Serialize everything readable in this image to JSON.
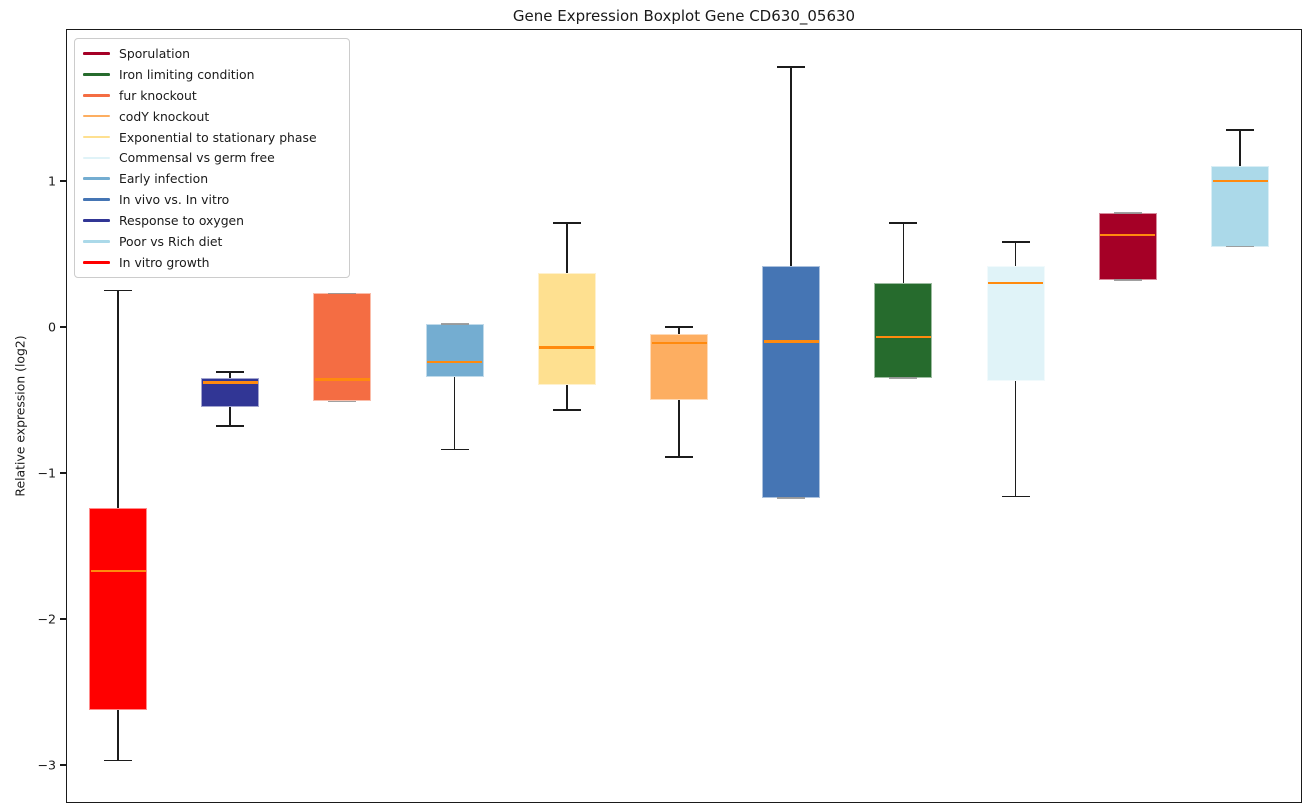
{
  "title": "Gene Expression Boxplot Gene CD630_05630",
  "ylabel": "Relative expression (log2)",
  "chart_data": {
    "type": "boxplot",
    "title": "Gene Expression Boxplot Gene CD630_05630",
    "xlabel": "",
    "ylabel": "Relative expression (log2)",
    "ylim": [
      -3.26,
      2.04
    ],
    "yticks": [
      1,
      0,
      -1,
      -2,
      -3
    ],
    "grid": false,
    "median_color": "#ff8a0e",
    "legend_position": "upper left",
    "boxes": [
      {
        "condition": "In vitro growth",
        "color": "#ff0000",
        "whisker_low": -2.97,
        "q1": -2.62,
        "median": -1.67,
        "q3": -1.24,
        "whisker_high": 0.25
      },
      {
        "condition": "Response to oxygen",
        "color": "#313695",
        "whisker_low": -0.68,
        "q1": -0.55,
        "median": -0.38,
        "q3": -0.35,
        "whisker_high": -0.31
      },
      {
        "condition": "fur knockout",
        "color": "#f46d43",
        "whisker_low": -0.51,
        "q1": -0.51,
        "median": -0.36,
        "q3": 0.23,
        "whisker_high": 0.23
      },
      {
        "condition": "Early infection",
        "color": "#74add1",
        "whisker_low": -0.84,
        "q1": -0.34,
        "median": -0.24,
        "q3": 0.02,
        "whisker_high": 0.02
      },
      {
        "condition": "Exponential to stationary phase",
        "color": "#fee090",
        "whisker_low": -0.57,
        "q1": -0.4,
        "median": -0.14,
        "q3": 0.37,
        "whisker_high": 0.71
      },
      {
        "condition": "codY knockout",
        "color": "#fdae61",
        "whisker_low": -0.89,
        "q1": -0.5,
        "median": -0.11,
        "q3": -0.05,
        "whisker_high": 0.0
      },
      {
        "condition": "In vivo vs. In vitro",
        "color": "#4575b4",
        "whisker_low": -1.17,
        "q1": -1.17,
        "median": -0.1,
        "q3": 0.42,
        "whisker_high": 1.78
      },
      {
        "condition": "Iron limiting condition",
        "color": "#266b2d",
        "whisker_low": -0.35,
        "q1": -0.35,
        "median": -0.07,
        "q3": 0.3,
        "whisker_high": 0.71
      },
      {
        "condition": "Commensal vs germ free",
        "color": "#e0f3f8",
        "whisker_low": -1.16,
        "q1": -0.37,
        "median": 0.3,
        "q3": 0.42,
        "whisker_high": 0.58
      },
      {
        "condition": "Sporulation",
        "color": "#a50026",
        "whisker_low": 0.32,
        "q1": 0.32,
        "median": 0.63,
        "q3": 0.78,
        "whisker_high": 0.78
      },
      {
        "condition": "Poor vs Rich diet",
        "color": "#abd9e9",
        "whisker_low": 0.55,
        "q1": 0.55,
        "median": 1.0,
        "q3": 1.1,
        "whisker_high": 1.35
      }
    ],
    "legend": {
      "items": [
        {
          "label": "Sporulation",
          "color": "#a50026"
        },
        {
          "label": "Iron limiting condition",
          "color": "#266b2d"
        },
        {
          "label": "fur knockout",
          "color": "#f46d43"
        },
        {
          "label": "codY knockout",
          "color": "#fdae61"
        },
        {
          "label": "Exponential to stationary phase",
          "color": "#fee090"
        },
        {
          "label": "Commensal vs germ free",
          "color": "#e0f3f8"
        },
        {
          "label": "Early infection",
          "color": "#74add1"
        },
        {
          "label": "In vivo vs. In vitro",
          "color": "#4575b4"
        },
        {
          "label": "Response to oxygen",
          "color": "#313695"
        },
        {
          "label": "Poor vs Rich diet",
          "color": "#abd9e9"
        },
        {
          "label": "In vitro growth",
          "color": "#ff0000"
        }
      ]
    }
  }
}
